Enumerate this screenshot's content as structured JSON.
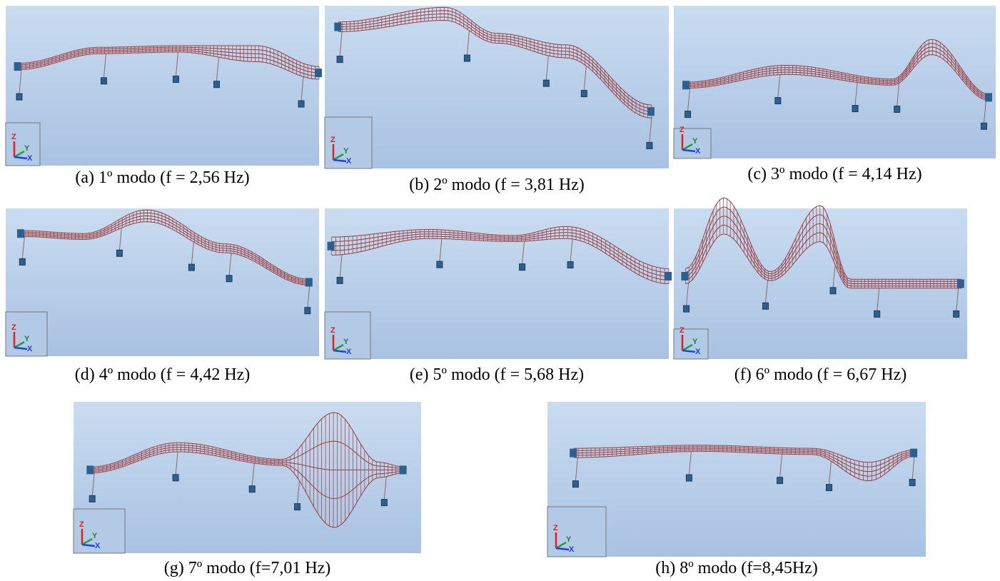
{
  "figure": {
    "triad_labels": [
      "Z",
      "Y",
      "X"
    ],
    "panels": [
      {
        "caption": "(a)  1º modo (f = 2,56 Hz)"
      },
      {
        "caption": "(b)  2º modo (f = 3,81 Hz)"
      },
      {
        "caption": "(c)  3º modo (f = 4,14 Hz)"
      },
      {
        "caption": "(d)  4º modo (f = 4,42 Hz)"
      },
      {
        "caption": "(e)  5º modo (f = 5,68 Hz)"
      },
      {
        "caption": "(f)  6º modo (f = 6,67 Hz)"
      },
      {
        "caption": "(g)  7º modo (f=7,01 Hz)"
      },
      {
        "caption": "(h)  8º modo (f=8,45Hz)"
      }
    ]
  }
}
